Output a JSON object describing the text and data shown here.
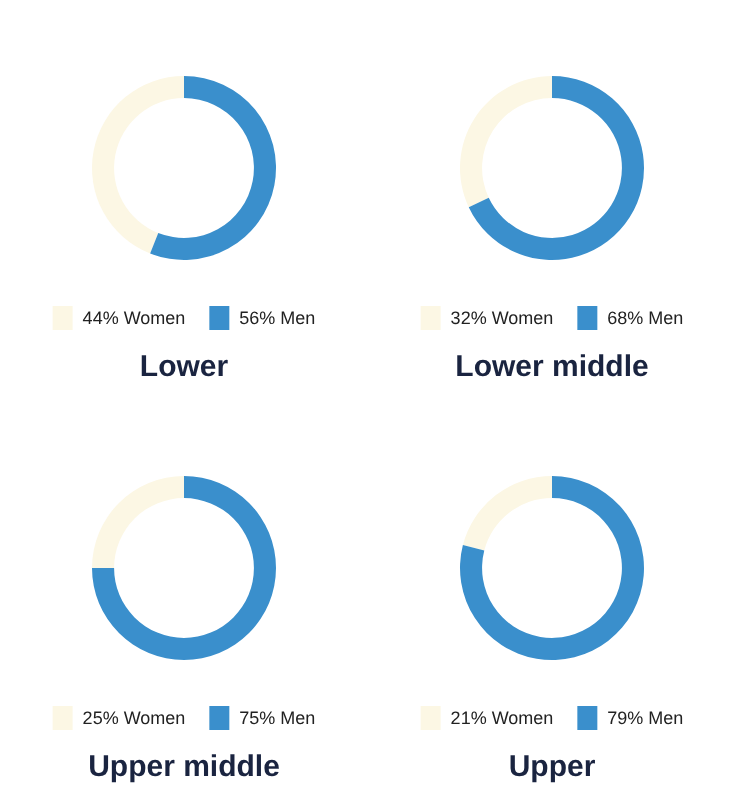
{
  "chart_data": [
    {
      "type": "donut",
      "title": "Lower",
      "categories": [
        "44% Women",
        "56% Men"
      ],
      "values": [
        44,
        56
      ],
      "colors": [
        "#fcf7e4",
        "#3a8fcc"
      ],
      "legend": "bottom"
    },
    {
      "type": "donut",
      "title": "Lower middle",
      "categories": [
        "32% Women",
        "68% Men"
      ],
      "values": [
        32,
        68
      ],
      "colors": [
        "#fcf7e4",
        "#3a8fcc"
      ],
      "legend": "bottom"
    },
    {
      "type": "donut",
      "title": "Upper middle",
      "categories": [
        "25% Women",
        "75% Men"
      ],
      "values": [
        25,
        75
      ],
      "colors": [
        "#fcf7e4",
        "#3a8fcc"
      ],
      "legend": "bottom"
    },
    {
      "type": "donut",
      "title": "Upper",
      "categories": [
        "21% Women",
        "79% Men"
      ],
      "values": [
        21,
        79
      ],
      "colors": [
        "#fcf7e4",
        "#3a8fcc"
      ],
      "legend": "bottom"
    }
  ]
}
